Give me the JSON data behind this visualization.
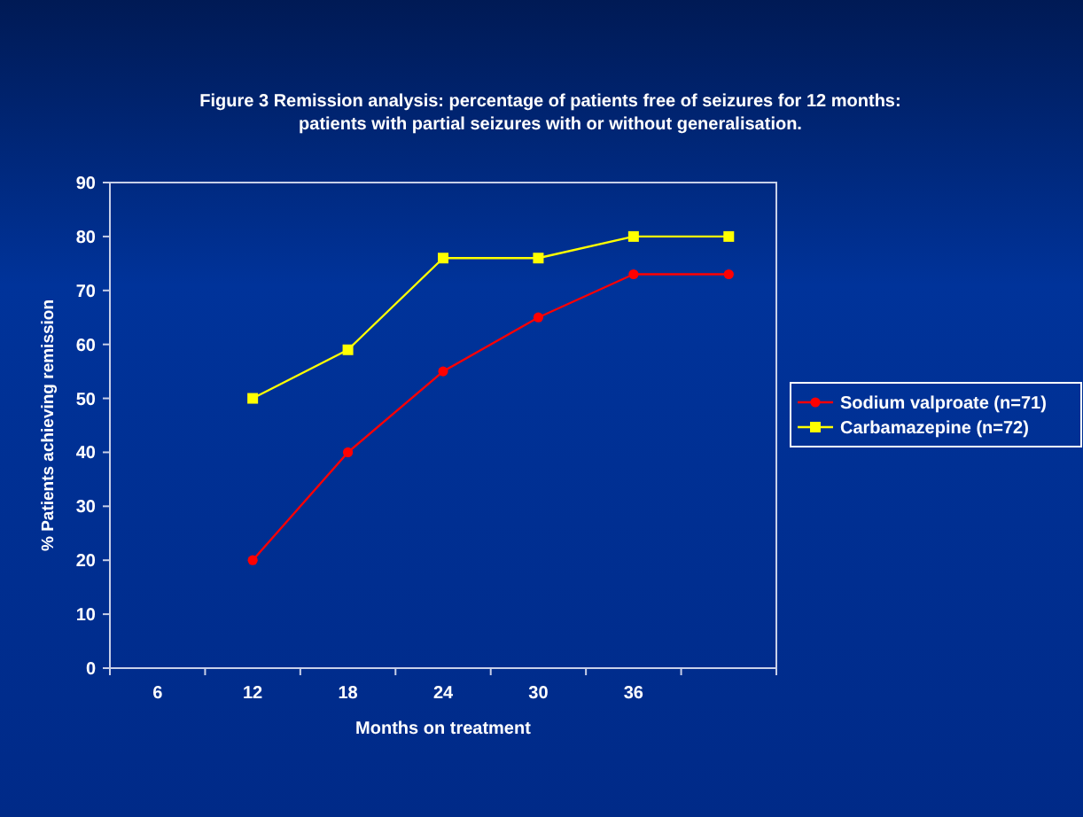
{
  "chart_data": {
    "type": "line",
    "title": "Figure 3 Remission analysis: percentage of patients free of seizures for 12 months:\npatients with partial seizures with or without generalisation.",
    "xlabel": "Months on treatment",
    "ylabel": "% Patients achieving remission",
    "categories": [
      "6",
      "12",
      "18",
      "24",
      "30",
      "36",
      null
    ],
    "series": [
      {
        "name": "Sodium valproate (n=71)",
        "color": "#ff0000",
        "marker": "circle",
        "values": [
          null,
          20,
          40,
          55,
          65,
          73,
          73
        ]
      },
      {
        "name": "Carbamazepine (n=72)",
        "color": "#ffff00",
        "marker": "square",
        "values": [
          null,
          50,
          59,
          76,
          76,
          80,
          80
        ]
      }
    ],
    "ylim": [
      0,
      90
    ],
    "yticks": [
      0,
      10,
      20,
      30,
      40,
      50,
      60,
      70,
      80,
      90
    ],
    "grid": false,
    "legend": "right"
  }
}
